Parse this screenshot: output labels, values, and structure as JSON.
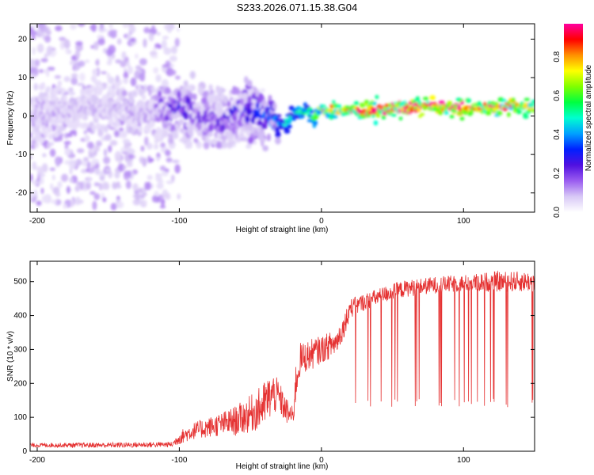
{
  "title": "S233.2026.071.15.38.G04",
  "colors": {
    "snr_line": "#e53232",
    "colormap": [
      "#ffffff",
      "#d8c8f6",
      "#9a5cf0",
      "#5010e0",
      "#0020ff",
      "#00a0ff",
      "#00ffd0",
      "#00ff40",
      "#80ff00",
      "#ffff00",
      "#ff9000",
      "#ff0000",
      "#ff00a0"
    ]
  },
  "chart_data": [
    {
      "type": "heatmap",
      "name": "spectrogram",
      "xlabel": "Height of straight line (km)",
      "ylabel": "Frequency (Hz)",
      "xlim": [
        -205,
        150
      ],
      "ylim": [
        -25,
        24
      ],
      "xticks": [
        -200,
        -100,
        0,
        100
      ],
      "yticks": [
        -20,
        -10,
        0,
        10,
        20
      ],
      "colorbar": {
        "label": "Normalized spectral amplitude",
        "range": [
          0.0,
          0.97
        ],
        "ticks": [
          0.0,
          0.2,
          0.4,
          0.6,
          0.8
        ]
      },
      "signal_frequency_track": {
        "x": [
          -205,
          -180,
          -150,
          -120,
          -100,
          -80,
          -60,
          -45,
          -35,
          -28,
          -22,
          -15,
          -10,
          -5,
          0,
          5,
          10,
          20,
          40,
          60,
          80,
          100,
          120,
          150
        ],
        "freq": [
          1.0,
          1.5,
          2.0,
          1.5,
          2.0,
          -1.0,
          0.5,
          2.0,
          -1.0,
          -2.0,
          -0.5,
          1.5,
          2.0,
          -0.5,
          2.0,
          1.0,
          1.5,
          1.5,
          1.5,
          2.0,
          2.5,
          2.0,
          2.5,
          2.5
        ],
        "amplitude": [
          0.1,
          0.1,
          0.1,
          0.12,
          0.25,
          0.2,
          0.25,
          0.3,
          0.35,
          0.4,
          0.5,
          0.55,
          0.5,
          0.6,
          0.7,
          0.72,
          0.75,
          0.85,
          0.9,
          0.95,
          0.97,
          0.9,
          0.85,
          0.8
        ]
      },
      "noise_regions": [
        {
          "x_from": -205,
          "x_to": -100,
          "freq_spread": 24
        },
        {
          "x_from": -100,
          "x_to": -40,
          "freq_spread": 8
        }
      ]
    },
    {
      "type": "line",
      "name": "snr",
      "xlabel": "Height of straight line (km)",
      "ylabel": "SNR (10 * v/v)",
      "xlim": [
        -205,
        150
      ],
      "ylim": [
        0,
        560
      ],
      "xticks": [
        -200,
        -100,
        0,
        100
      ],
      "yticks": [
        0,
        100,
        200,
        300,
        400,
        500
      ],
      "envelope": {
        "x": [
          -205,
          -150,
          -105,
          -100,
          -90,
          -80,
          -70,
          -60,
          -50,
          -42,
          -38,
          -34,
          -30,
          -25,
          -20,
          -18,
          -15,
          -10,
          -5,
          0,
          5,
          10,
          15,
          20,
          30,
          40,
          50,
          60,
          80,
          100,
          120,
          150
        ],
        "mean": [
          18,
          18,
          20,
          40,
          60,
          70,
          80,
          90,
          110,
          130,
          150,
          170,
          160,
          120,
          100,
          200,
          270,
          280,
          290,
          300,
          310,
          320,
          360,
          420,
          440,
          455,
          470,
          480,
          490,
          495,
          500,
          500
        ],
        "spread": [
          6,
          8,
          8,
          20,
          25,
          30,
          35,
          45,
          55,
          65,
          70,
          60,
          50,
          40,
          30,
          60,
          50,
          45,
          45,
          40,
          40,
          40,
          35,
          30,
          25,
          25,
          25,
          25,
          25,
          25,
          30,
          30
        ]
      },
      "dropout_floor": 130,
      "dropouts_start_x": 18
    }
  ]
}
